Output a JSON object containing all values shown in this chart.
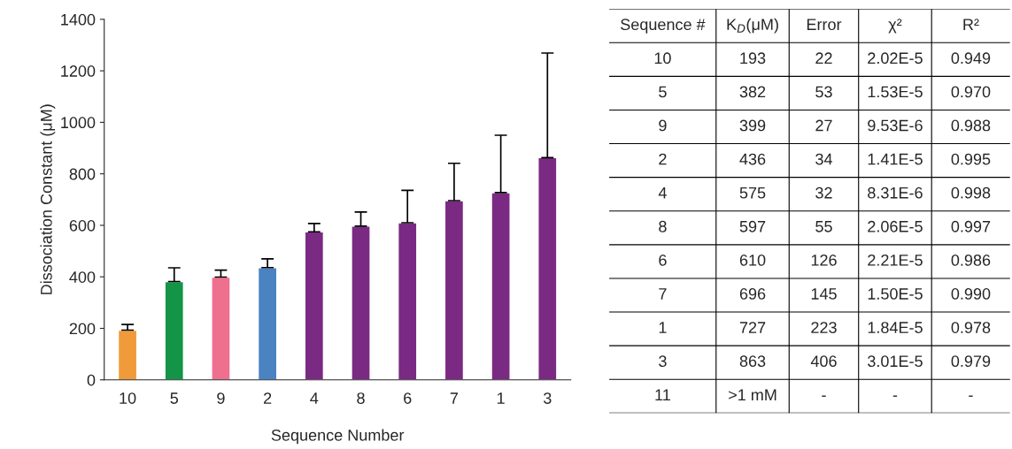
{
  "chart_data": [
    {
      "type": "bar",
      "xlabel": "Sequence Number",
      "ylabel": "Dissociation Constant (μM)",
      "categories": [
        "10",
        "5",
        "9",
        "2",
        "4",
        "8",
        "6",
        "7",
        "1",
        "3"
      ],
      "values": [
        193,
        382,
        399,
        436,
        575,
        597,
        610,
        696,
        727,
        863
      ],
      "colors": [
        "#f09a3a",
        "#149447",
        "#ee6f8e",
        "#4a82c2",
        "#7a2a82",
        "#7a2a82",
        "#7a2a82",
        "#7a2a82",
        "#7a2a82",
        "#7a2a82"
      ],
      "errors": [
        [
          193,
          215
        ],
        [
          382,
          435
        ],
        [
          399,
          426
        ],
        [
          436,
          470
        ],
        [
          575,
          607
        ],
        [
          597,
          652
        ],
        [
          610,
          736
        ],
        [
          696,
          841
        ],
        [
          727,
          950
        ],
        [
          863,
          1269
        ]
      ],
      "ylim": [
        0,
        1400
      ],
      "yticks": [
        0,
        200,
        400,
        600,
        800,
        1000,
        1200,
        1400
      ],
      "grid": false,
      "legend": false
    },
    {
      "type": "other",
      "categories": [
        "Sequence #",
        "K$_{D}$(μM)",
        "Error",
        "χ²",
        "R²"
      ],
      "cell_labels": [
        [
          "10",
          "193",
          "22",
          "2.02E-5",
          "0.949"
        ],
        [
          "5",
          "382",
          "53",
          "1.53E-5",
          "0.970"
        ],
        [
          "9",
          "399",
          "27",
          "9.53E-6",
          "0.988"
        ],
        [
          "2",
          "436",
          "34",
          "1.41E-5",
          "0.995"
        ],
        [
          "4",
          "575",
          "32",
          "8.31E-6",
          "0.998"
        ],
        [
          "8",
          "597",
          "55",
          "2.06E-5",
          "0.997"
        ],
        [
          "6",
          "610",
          "126",
          "2.21E-5",
          "0.986"
        ],
        [
          "7",
          "696",
          "145",
          "1.50E-5",
          "0.990"
        ],
        [
          "1",
          "727",
          "223",
          "1.84E-5",
          "0.978"
        ],
        [
          "3",
          "863",
          "406",
          "3.01E-5",
          "0.979"
        ],
        [
          "11",
          ">1 mM",
          "-",
          "-",
          "-"
        ]
      ]
    }
  ]
}
